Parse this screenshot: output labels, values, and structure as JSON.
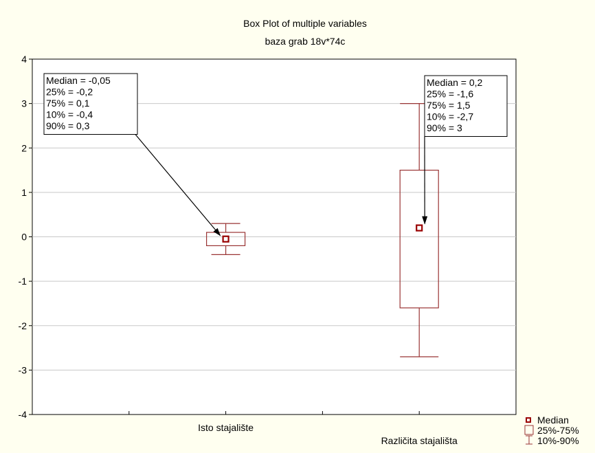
{
  "chart_data": {
    "type": "box",
    "title": "Box Plot of multiple variables",
    "subtitle": "baza grab 18v*74c",
    "ylim": [
      -4,
      4
    ],
    "yticks": [
      4,
      3,
      2,
      1,
      0,
      -1,
      -2,
      -3,
      -4
    ],
    "grid": true,
    "categories": [
      "Isto stajalište",
      "Različita stajališta"
    ],
    "boxes": [
      {
        "category": "Isto stajalište",
        "median": -0.05,
        "q1": -0.2,
        "q3": 0.1,
        "p10": -0.4,
        "p90": 0.3,
        "annotation": [
          "Median = -0,05",
          "25% = -0,2",
          "75% = 0,1",
          "10% = -0,4",
          "90% = 0,3"
        ]
      },
      {
        "category": "Različita stajališta",
        "median": 0.2,
        "q1": -1.6,
        "q3": 1.5,
        "p10": -2.7,
        "p90": 3,
        "annotation": [
          "Median = 0,2",
          "25% = -1,6",
          "75% = 1,5",
          "10% = -2,7",
          "90% = 3"
        ]
      }
    ],
    "legend": {
      "placement": "bottom-right",
      "items": [
        {
          "label": "Median",
          "symbol": "median-marker"
        },
        {
          "label": "25%-75%",
          "symbol": "box"
        },
        {
          "label": "10%-90%",
          "symbol": "whisker"
        }
      ]
    },
    "colors": {
      "box": "#993333",
      "median_fill": "#990000",
      "grid": "#c8c8c8",
      "background": "#fffff0",
      "plot_area": "#ffffff"
    }
  }
}
